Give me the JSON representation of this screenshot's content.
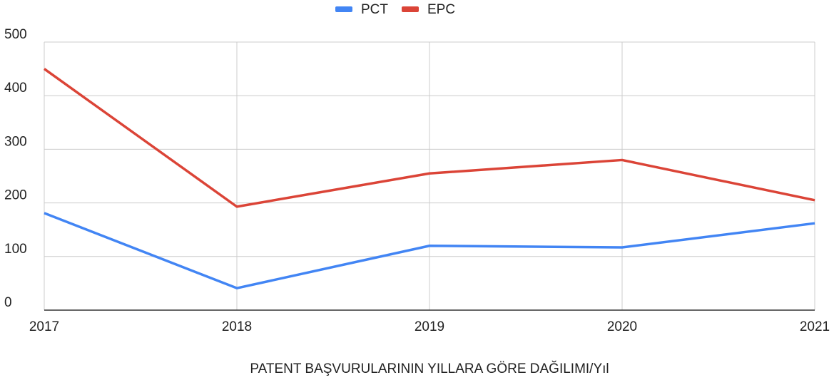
{
  "chart_data": {
    "type": "line",
    "x": [
      2017,
      2018,
      2019,
      2020,
      2021
    ],
    "series": [
      {
        "name": "PCT",
        "color": "#4285f4",
        "values": [
          181,
          41,
          120,
          117,
          162
        ]
      },
      {
        "name": "EPC",
        "color": "#db4437",
        "values": [
          450,
          193,
          255,
          280,
          205
        ]
      }
    ],
    "xlabel": "PATENT BAŞVURULARININ YILLARA GÖRE DAĞILIMI/Yıl",
    "xlim": [
      2017,
      2021
    ],
    "xticks": [
      2017,
      2018,
      2019,
      2020,
      2021
    ],
    "ylim": [
      0,
      500
    ],
    "yticks": [
      0,
      100,
      200,
      300,
      400,
      500
    ],
    "grid": true,
    "legend": "top"
  }
}
